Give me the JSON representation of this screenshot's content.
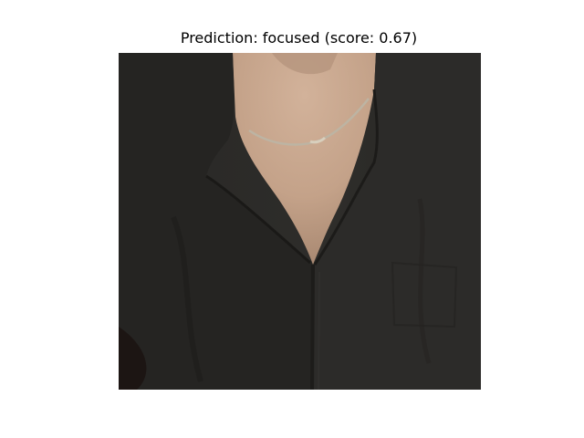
{
  "figure": {
    "title": "Prediction: focused (score: 0.67)"
  },
  "image": {
    "subject": "person-torso-dark-shirt-necklace",
    "colors": {
      "shirt": "#2a2927",
      "shirt_shadow": "#1b1a18",
      "skin": "#c9a890",
      "skin_shadow": "#9a7b66",
      "necklace": "#b8b0a0",
      "background": "#ffffff"
    }
  }
}
